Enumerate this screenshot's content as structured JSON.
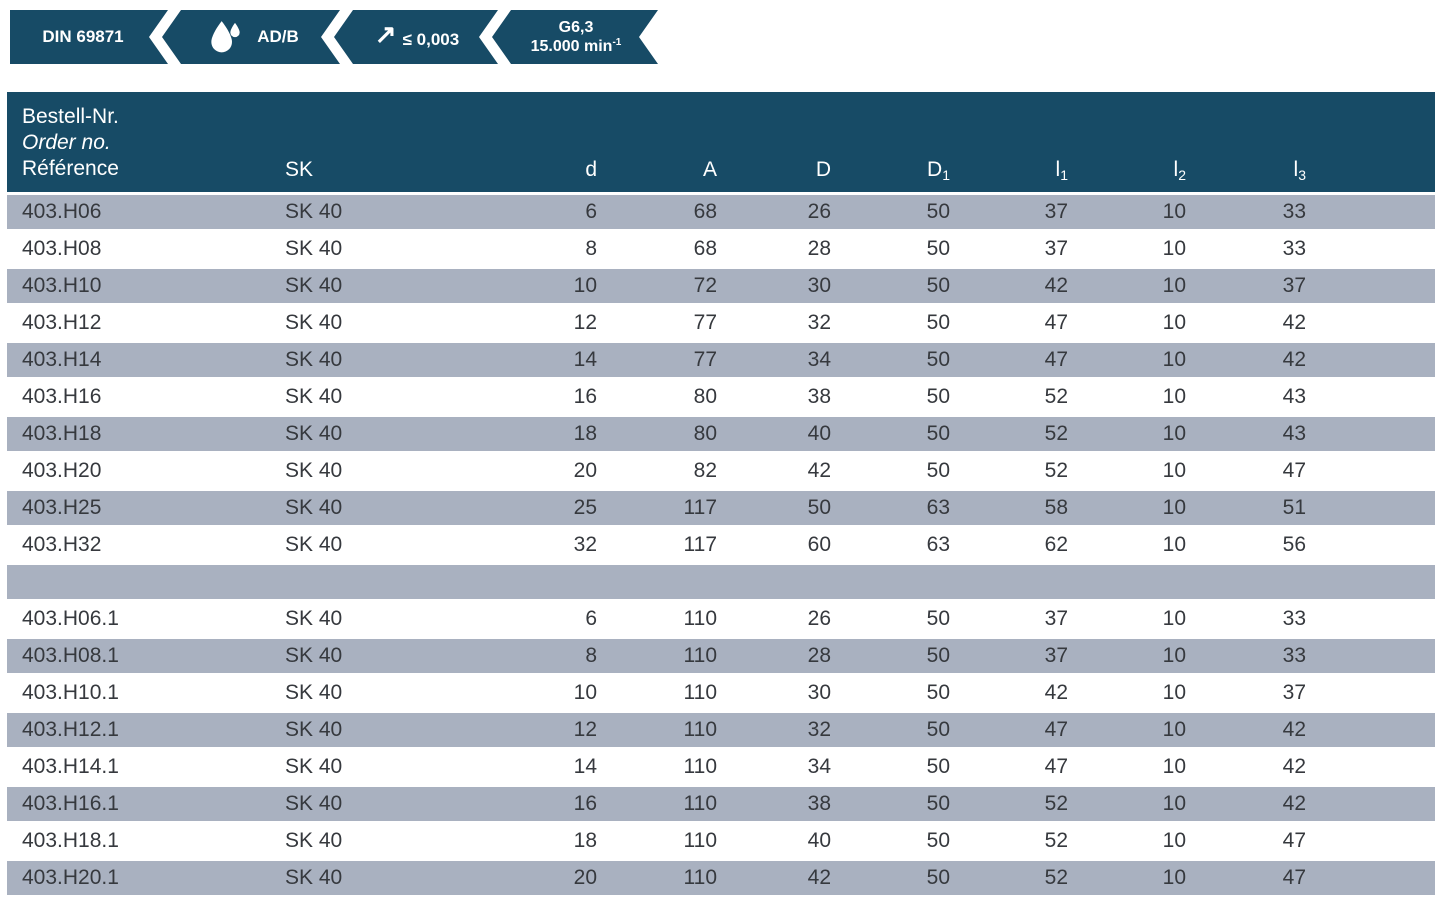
{
  "colors": {
    "badge_and_header_bg": "#174b66",
    "row_alt_bg": "#a9b1c0",
    "row_bg": "#ffffff",
    "body_text": "#36393e",
    "header_text": "#ffffff"
  },
  "badges": [
    {
      "label": "DIN 69871"
    },
    {
      "icon": "coolant-drops-icon",
      "label": "AD/B"
    },
    {
      "icon": "runout-arrow-icon",
      "icon_glyph": "↗",
      "label": "≤ 0,003"
    },
    {
      "line1": "G6,3",
      "line2": "15.000 min",
      "line2_sup": "-1"
    }
  ],
  "table": {
    "header": {
      "ref_lines": [
        "Bestell-Nr.",
        "Order no.",
        "Référence"
      ],
      "columns": [
        {
          "main": "SK",
          "sub": ""
        },
        {
          "main": "d",
          "sub": ""
        },
        {
          "main": "A",
          "sub": ""
        },
        {
          "main": "D",
          "sub": ""
        },
        {
          "main": "D",
          "sub": "1"
        },
        {
          "main": "l",
          "sub": "1"
        },
        {
          "main": "l",
          "sub": "2"
        },
        {
          "main": "l",
          "sub": "3"
        }
      ]
    },
    "rows": [
      [
        "403.H06",
        "SK 40",
        "6",
        "68",
        "26",
        "50",
        "37",
        "10",
        "33"
      ],
      [
        "403.H08",
        "SK 40",
        "8",
        "68",
        "28",
        "50",
        "37",
        "10",
        "33"
      ],
      [
        "403.H10",
        "SK 40",
        "10",
        "72",
        "30",
        "50",
        "42",
        "10",
        "37"
      ],
      [
        "403.H12",
        "SK 40",
        "12",
        "77",
        "32",
        "50",
        "47",
        "10",
        "42"
      ],
      [
        "403.H14",
        "SK 40",
        "14",
        "77",
        "34",
        "50",
        "47",
        "10",
        "42"
      ],
      [
        "403.H16",
        "SK 40",
        "16",
        "80",
        "38",
        "50",
        "52",
        "10",
        "43"
      ],
      [
        "403.H18",
        "SK 40",
        "18",
        "80",
        "40",
        "50",
        "52",
        "10",
        "43"
      ],
      [
        "403.H20",
        "SK 40",
        "20",
        "82",
        "42",
        "50",
        "52",
        "10",
        "47"
      ],
      [
        "403.H25",
        "SK 40",
        "25",
        "117",
        "50",
        "63",
        "58",
        "10",
        "51"
      ],
      [
        "403.H32",
        "SK 40",
        "32",
        "117",
        "60",
        "63",
        "62",
        "10",
        "56"
      ],
      [
        "",
        "",
        "",
        "",
        "",
        "",
        "",
        "",
        ""
      ],
      [
        "403.H06.1",
        "SK 40",
        "6",
        "110",
        "26",
        "50",
        "37",
        "10",
        "33"
      ],
      [
        "403.H08.1",
        "SK 40",
        "8",
        "110",
        "28",
        "50",
        "37",
        "10",
        "33"
      ],
      [
        "403.H10.1",
        "SK 40",
        "10",
        "110",
        "30",
        "50",
        "42",
        "10",
        "37"
      ],
      [
        "403.H12.1",
        "SK 40",
        "12",
        "110",
        "32",
        "50",
        "47",
        "10",
        "42"
      ],
      [
        "403.H14.1",
        "SK 40",
        "14",
        "110",
        "34",
        "50",
        "47",
        "10",
        "42"
      ],
      [
        "403.H16.1",
        "SK 40",
        "16",
        "110",
        "38",
        "50",
        "52",
        "10",
        "42"
      ],
      [
        "403.H18.1",
        "SK 40",
        "18",
        "110",
        "40",
        "50",
        "52",
        "10",
        "47"
      ],
      [
        "403.H20.1",
        "SK 40",
        "20",
        "110",
        "42",
        "50",
        "52",
        "10",
        "47"
      ]
    ]
  }
}
